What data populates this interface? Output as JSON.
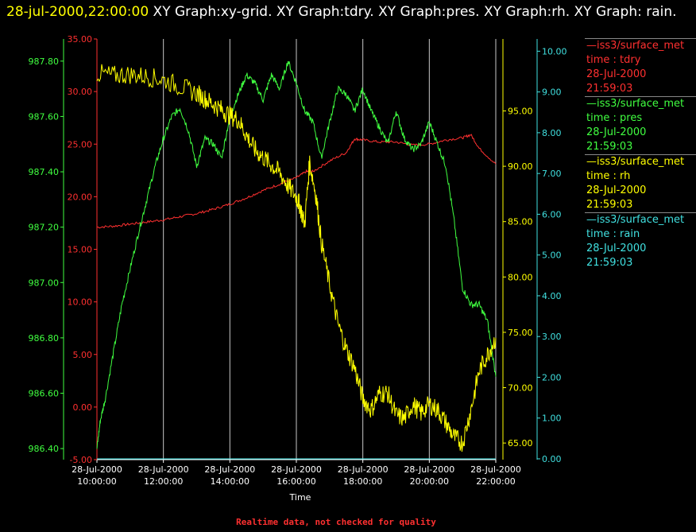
{
  "title": {
    "date": "28-jul-2000,22:00:00",
    "text": "  XY Graph:xy-grid.  XY Graph:tdry.  XY Graph:pres.  XY Graph:rh.  XY Graph: rain."
  },
  "legend": [
    {
      "source": "—iss3/surface_met",
      "field": "time : tdry",
      "date": "28-Jul-2000",
      "time": "21:59:03",
      "color": "#ff3030"
    },
    {
      "source": "—iss3/surface_met",
      "field": "time : pres",
      "date": "28-Jul-2000",
      "time": "21:59:03",
      "color": "#40ff40"
    },
    {
      "source": "—iss3/surface_met",
      "field": "time : rh",
      "date": "28-Jul-2000",
      "time": "21:59:03",
      "color": "#ffff00"
    },
    {
      "source": "—iss3/surface_met",
      "field": "time : rain",
      "date": "28-Jul-2000",
      "time": "21:59:03",
      "color": "#40e0e0"
    }
  ],
  "footer": "Realtime data, not checked for quality",
  "chart_data": {
    "type": "line",
    "xlabel": "Time",
    "x_ticks": [
      [
        "28-Jul-2000",
        "10:00:00"
      ],
      [
        "28-Jul-2000",
        "12:00:00"
      ],
      [
        "28-Jul-2000",
        "14:00:00"
      ],
      [
        "28-Jul-2000",
        "16:00:00"
      ],
      [
        "28-Jul-2000",
        "18:00:00"
      ],
      [
        "28-Jul-2000",
        "20:00:00"
      ],
      [
        "28-Jul-2000",
        "22:00:00"
      ]
    ],
    "xlim_hours": [
      10,
      22
    ],
    "grid": "vertical lines at each x tick",
    "axes": {
      "tdry": {
        "range": [
          -5,
          35
        ],
        "ticks": [
          "-5.00",
          "0.00",
          "5.00",
          "10.00",
          "15.00",
          "20.00",
          "25.00",
          "30.00",
          "35.00"
        ],
        "color": "#ff3030"
      },
      "pres": {
        "range": [
          986.36,
          987.88
        ],
        "ticks": [
          "986.40",
          "986.60",
          "986.80",
          "987.00",
          "987.20",
          "987.40",
          "987.60",
          "987.80"
        ],
        "color": "#40ff40"
      },
      "rh": {
        "range": [
          63.5,
          101.5
        ],
        "ticks": [
          "65.00",
          "70.00",
          "75.00",
          "80.00",
          "85.00",
          "90.00",
          "95.00"
        ],
        "color": "#ffff00"
      },
      "rain": {
        "range": [
          -0.02,
          10.3
        ],
        "ticks": [
          "0.00",
          "1.00",
          "2.00",
          "3.00",
          "4.00",
          "5.00",
          "6.00",
          "7.00",
          "8.00",
          "9.00",
          "10.00"
        ],
        "color": "#40e0e0"
      }
    },
    "series": [
      {
        "name": "tdry",
        "x": [
          10,
          10.5,
          11,
          11.5,
          12,
          12.5,
          13,
          13.5,
          14,
          14.5,
          15,
          15.5,
          16,
          16.3,
          16.5,
          17,
          17.5,
          17.75,
          18,
          18.5,
          19,
          19.5,
          20,
          20.5,
          21,
          21.25,
          21.5,
          22
        ],
        "y": [
          17.1,
          17.2,
          17.4,
          17.6,
          17.8,
          18.1,
          18.4,
          18.8,
          19.3,
          19.9,
          20.6,
          21.2,
          21.8,
          22.4,
          22.4,
          23.4,
          24.2,
          25.5,
          25.4,
          25.2,
          25.2,
          24.9,
          25.0,
          25.4,
          25.6,
          25.9,
          24.6,
          23.1
        ]
      },
      {
        "name": "pres",
        "x": [
          10,
          10.1,
          10.25,
          10.5,
          10.75,
          11,
          11.25,
          11.5,
          11.75,
          12,
          12.25,
          12.5,
          12.75,
          13,
          13.25,
          13.5,
          13.75,
          14,
          14.25,
          14.5,
          14.75,
          15,
          15.25,
          15.5,
          15.75,
          16,
          16.25,
          16.5,
          16.75,
          17,
          17.25,
          17.5,
          17.75,
          18,
          18.25,
          18.5,
          18.75,
          19,
          19.25,
          19.5,
          19.75,
          20,
          20.25,
          20.5,
          20.75,
          21,
          21.25,
          21.5,
          21.75,
          22
        ],
        "y": [
          986.4,
          986.5,
          986.58,
          986.75,
          986.92,
          987.05,
          987.18,
          987.3,
          987.42,
          987.52,
          987.6,
          987.63,
          987.55,
          987.42,
          987.52,
          987.5,
          987.45,
          987.6,
          987.68,
          987.75,
          987.72,
          987.66,
          987.75,
          987.7,
          987.8,
          987.72,
          987.62,
          987.58,
          987.45,
          987.58,
          987.7,
          987.68,
          987.62,
          987.7,
          987.62,
          987.56,
          987.5,
          987.62,
          987.52,
          987.48,
          987.5,
          987.58,
          987.5,
          987.42,
          987.22,
          986.98,
          986.92,
          986.92,
          986.86,
          986.66
        ]
      },
      {
        "name": "rh",
        "x": [
          10,
          10.5,
          11,
          11.5,
          12,
          12.5,
          13,
          13.25,
          13.5,
          13.75,
          14,
          14.25,
          14.5,
          14.75,
          15,
          15.25,
          15.5,
          15.75,
          16,
          16.1,
          16.25,
          16.4,
          16.6,
          16.75,
          17,
          17.25,
          17.5,
          17.75,
          18,
          18.25,
          18.5,
          18.75,
          19,
          19.25,
          19.5,
          19.75,
          20,
          20.25,
          20.5,
          20.75,
          21,
          21.25,
          21.5,
          21.75,
          22
        ],
        "y": [
          98.4,
          98.2,
          98.3,
          98.1,
          97.8,
          97.2,
          96.6,
          96.1,
          95.6,
          95.1,
          94.6,
          94.2,
          92.8,
          91.5,
          90.8,
          90.1,
          89.4,
          88.2,
          87.2,
          86.5,
          84.8,
          90.4,
          87.2,
          83.2,
          79.3,
          75.8,
          73.5,
          71.8,
          69.0,
          68.0,
          69.5,
          69.5,
          67.5,
          67.2,
          68.5,
          67.7,
          68.5,
          68.0,
          66.8,
          65.5,
          65.0,
          68.0,
          71.5,
          73.0,
          74.5
        ]
      },
      {
        "name": "rain",
        "x": [
          10,
          22
        ],
        "y": [
          0,
          0
        ]
      }
    ]
  }
}
